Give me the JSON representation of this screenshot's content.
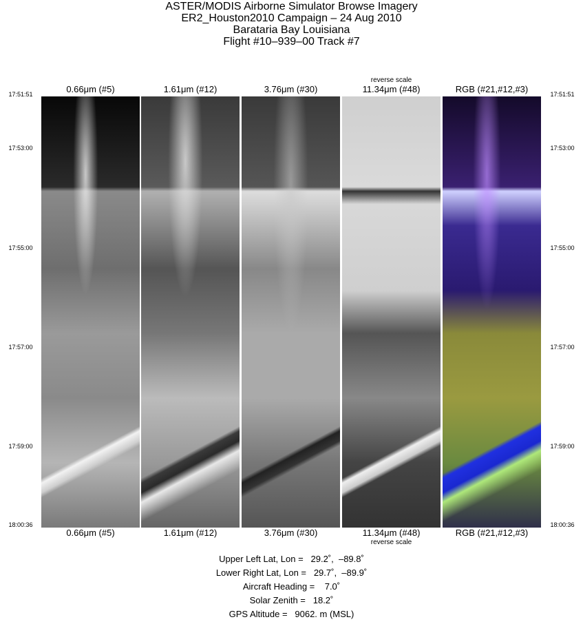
{
  "header": {
    "lines": [
      "ASTER/MODIS Airborne Simulator Browse Imagery",
      "ER2_Houston2010 Campaign – 24 Aug 2010",
      "Barataria Bay Louisiana",
      "Flight #10–939–00 Track #7"
    ]
  },
  "panels": [
    {
      "label": "0.66μm (#5)"
    },
    {
      "label": "1.61μm (#12)"
    },
    {
      "label": "3.76μm (#30)"
    },
    {
      "label": "11.34μm (#48)",
      "note": "reverse scale"
    },
    {
      "label": "RGB (#21,#12,#3)"
    }
  ],
  "times": [
    "17:51:51",
    "17:53:00",
    "17:55:00",
    "17:57:00",
    "17:59:00",
    "18:00:36"
  ],
  "footer": {
    "lines": [
      "Upper Left Lat, Lon =   29.2˚,  –89.8˚",
      "Lower Right Lat, Lon =   29.7˚,  –89.9˚",
      "Aircraft Heading =    7.0˚",
      "Solar Zenith =   18.2˚",
      "GPS Altitude =   9062. m (MSL)"
    ]
  }
}
